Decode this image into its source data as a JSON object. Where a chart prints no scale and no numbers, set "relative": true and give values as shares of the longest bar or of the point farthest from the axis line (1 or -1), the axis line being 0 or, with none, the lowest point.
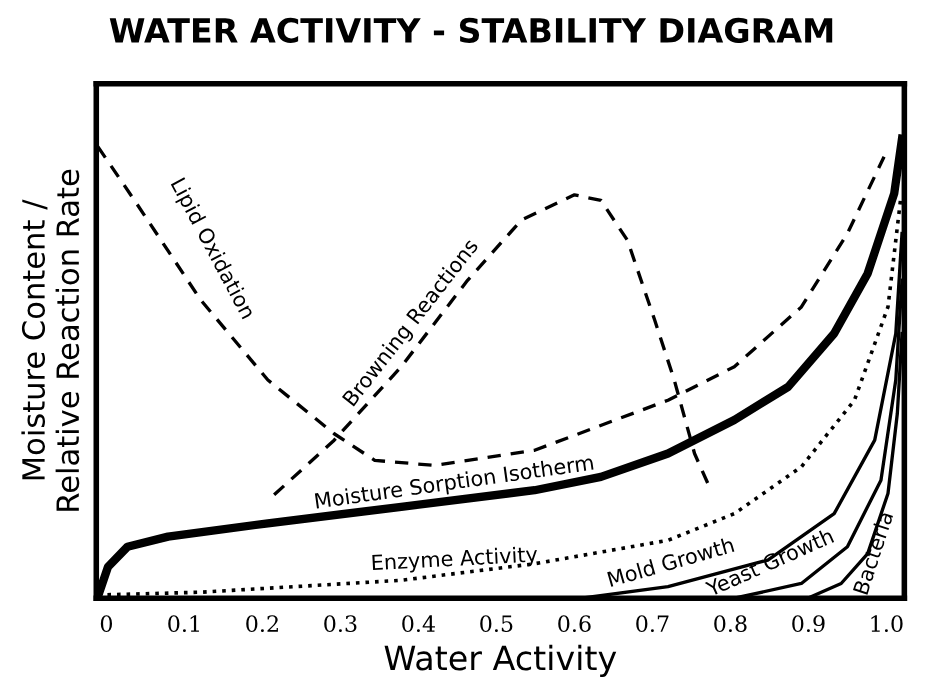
{
  "chart_data": {
    "type": "line",
    "title": "WATER ACTIVITY - STABILITY DIAGRAM",
    "xlabel": "Water Activity",
    "ylabel": "Moisture Content /\nRelative Reaction Rate",
    "relative": true,
    "grid": false,
    "legend": false,
    "xlim": [
      -0.013,
      1.023
    ],
    "xticks": [
      0,
      0.1,
      0.2,
      0.3,
      0.4,
      0.5,
      0.6,
      0.7,
      0.8,
      0.9,
      {
        "value": 1,
        "label": "1.0"
      }
    ],
    "series": [
      {
        "name": "Lipid Oxidation",
        "color": "#000000",
        "line_style": "dashed",
        "x": [
          -0.011,
          0.036,
          0.121,
          0.207,
          0.292,
          0.344,
          0.421,
          0.549,
          0.72,
          0.805,
          0.891,
          0.95,
          0.997
        ],
        "values": [
          0.983,
          0.866,
          0.649,
          0.475,
          0.358,
          0.3,
          0.289,
          0.322,
          0.431,
          0.504,
          0.634,
          0.794,
          0.961
        ]
      },
      {
        "name": "Browning Reactions",
        "color": "#000000",
        "line_style": "dashed",
        "x": [
          0.215,
          0.292,
          0.378,
          0.463,
          0.532,
          0.6,
          0.634,
          0.668,
          0.703,
          0.728,
          0.754,
          0.771
        ],
        "values": [
          0.225,
          0.344,
          0.504,
          0.692,
          0.823,
          0.878,
          0.866,
          0.779,
          0.605,
          0.475,
          0.315,
          0.25
        ]
      },
      {
        "name": "Moisture Sorption Isotherm",
        "color": "#000000",
        "line_style": "solid",
        "x": [
          -0.011,
          0.002,
          0.027,
          0.079,
          0.207,
          0.378,
          0.549,
          0.634,
          0.72,
          0.805,
          0.874,
          0.933,
          0.976,
          1.01,
          1.02
        ],
        "values": [
          0.003,
          0.068,
          0.112,
          0.134,
          0.163,
          0.199,
          0.235,
          0.264,
          0.315,
          0.388,
          0.46,
          0.576,
          0.707,
          0.881,
          1.0
        ]
      },
      {
        "name": "Enzyme Activity",
        "color": "#000000",
        "line_style": "dotted",
        "x": [
          -0.011,
          0.121,
          0.378,
          0.549,
          0.72,
          0.805,
          0.891,
          0.959,
          1.002,
          1.018
        ],
        "values": [
          0.007,
          0.013,
          0.039,
          0.075,
          0.126,
          0.184,
          0.286,
          0.431,
          0.634,
          0.866
        ]
      },
      {
        "name": "Mold Growth",
        "color": "#000000",
        "line_style": "solid",
        "x": [
          0.609,
          0.72,
          0.848,
          0.933,
          0.985,
          1.012,
          1.02
        ],
        "values": [
          0,
          0.025,
          0.083,
          0.184,
          0.344,
          0.576,
          0.794
        ]
      },
      {
        "name": "Yeast Growth",
        "color": "#000000",
        "line_style": "solid",
        "x": [
          0.805,
          0.891,
          0.95,
          0.993,
          1.012,
          1.02
        ],
        "values": [
          0,
          0.032,
          0.112,
          0.257,
          0.475,
          0.692
        ]
      },
      {
        "name": "Bacteria",
        "color": "#000000",
        "line_style": "solid",
        "x": [
          0.899,
          0.942,
          0.976,
          1.002,
          1.014,
          1.02
        ],
        "values": [
          0,
          0.032,
          0.097,
          0.228,
          0.402,
          0.576
        ]
      }
    ]
  }
}
